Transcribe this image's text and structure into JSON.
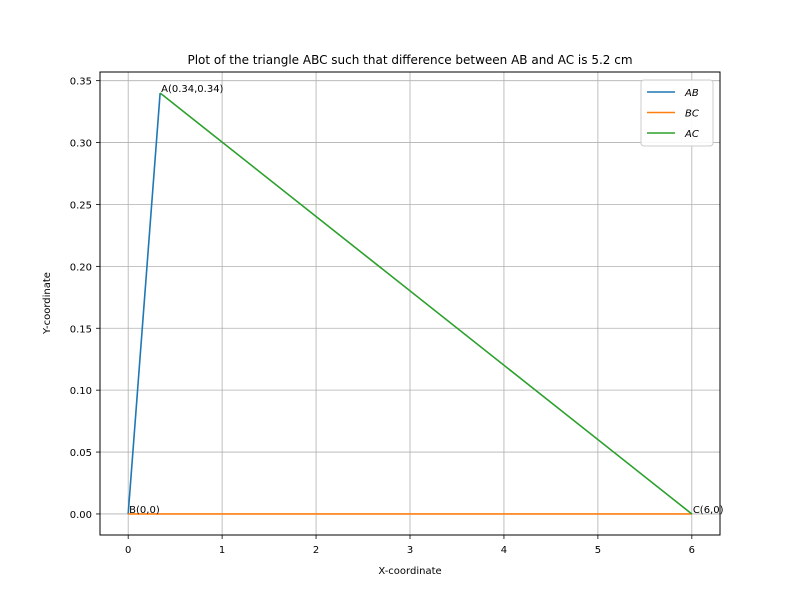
{
  "chart_data": {
    "type": "line",
    "title": "Plot of the triangle ABC such that difference between AB and AC is 5.2 cm",
    "xlabel": "X-coordinate",
    "ylabel": "Y-coordinate",
    "xlim": [
      -0.3,
      6.3
    ],
    "ylim": [
      -0.017,
      0.357
    ],
    "x_ticks": [
      0,
      1,
      2,
      3,
      4,
      5,
      6
    ],
    "x_tick_labels": [
      "0",
      "1",
      "2",
      "3",
      "4",
      "5",
      "6"
    ],
    "y_ticks": [
      0.0,
      0.05,
      0.1,
      0.15,
      0.2,
      0.25,
      0.3,
      0.35
    ],
    "y_tick_labels": [
      "0.00",
      "0.05",
      "0.10",
      "0.15",
      "0.20",
      "0.25",
      "0.30",
      "0.35"
    ],
    "grid": true,
    "legend_position": "top-right",
    "series": [
      {
        "name": "AB",
        "color": "#1f77b4",
        "x": [
          0,
          0.34
        ],
        "y": [
          0,
          0.34
        ]
      },
      {
        "name": "BC",
        "color": "#ff7f0e",
        "x": [
          0,
          6
        ],
        "y": [
          0,
          0
        ]
      },
      {
        "name": "AC",
        "color": "#2ca02c",
        "x": [
          0.34,
          6
        ],
        "y": [
          0.34,
          0
        ]
      }
    ],
    "annotations": [
      {
        "text": "A(0.34,0.34)",
        "x": 0.34,
        "y": 0.34
      },
      {
        "text": "B(0,0)",
        "x": 0,
        "y": 0
      },
      {
        "text": "C(6,0)",
        "x": 6,
        "y": 0
      }
    ]
  }
}
